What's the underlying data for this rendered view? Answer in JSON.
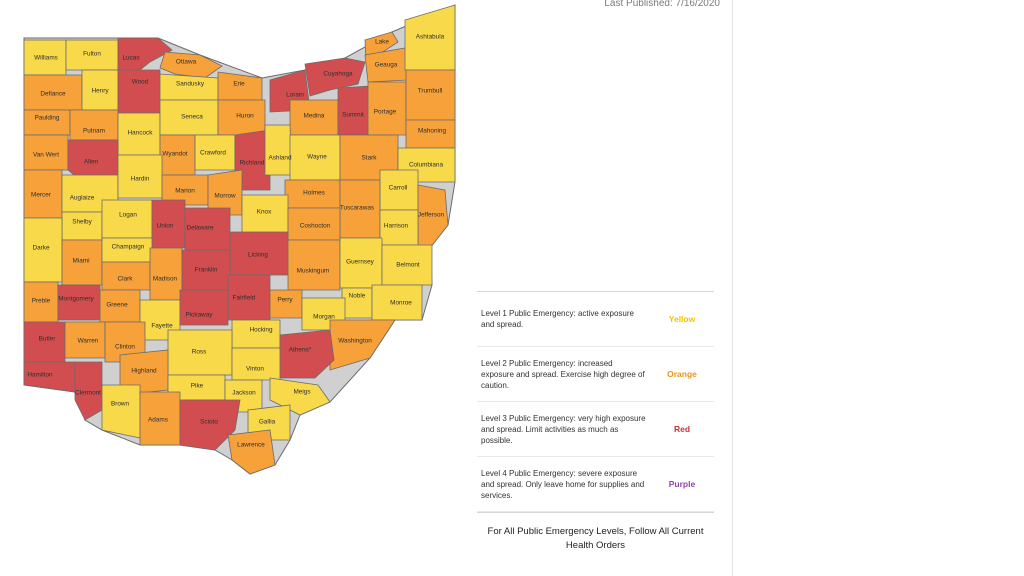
{
  "header": {
    "published": "Last Published: 7/16/2020"
  },
  "colors": {
    "yellow": "#f8d94a",
    "orange": "#f6a13a",
    "red": "#d24d4f",
    "purple": "#9b59b6"
  },
  "legend": {
    "levels": [
      {
        "description": "Level 1 Public Emergency: active exposure and spread.",
        "level": "Yellow",
        "color": "#f2c500"
      },
      {
        "description": "Level 2 Public Emergency: increased exposure and spread. Exercise high degree of caution.",
        "level": "Orange",
        "color": "#e8941a"
      },
      {
        "description": "Level 3 Public Emergency: very high exposure and spread. Limit activities as much as possible.",
        "level": "Red",
        "color": "#cc3333"
      },
      {
        "description": "Level 4 Public Emergency: severe exposure and spread. Only leave home for supplies and services.",
        "level": "Purple",
        "color": "#8e44ad"
      }
    ],
    "footer": "For All Public Emergency Levels, Follow All Current Health Orders"
  },
  "counties": [
    {
      "name": "Williams",
      "level": "Yellow"
    },
    {
      "name": "Fulton",
      "level": "Yellow"
    },
    {
      "name": "Lucas",
      "level": "Red"
    },
    {
      "name": "Ottawa",
      "level": "Orange"
    },
    {
      "name": "Defiance",
      "level": "Orange"
    },
    {
      "name": "Henry",
      "level": "Yellow"
    },
    {
      "name": "Wood",
      "level": "Red"
    },
    {
      "name": "Sandusky",
      "level": "Yellow"
    },
    {
      "name": "Erie",
      "level": "Orange"
    },
    {
      "name": "Lorain",
      "level": "Red"
    },
    {
      "name": "Cuyahoga",
      "level": "Red"
    },
    {
      "name": "Lake",
      "level": "Orange"
    },
    {
      "name": "Geauga",
      "level": "Orange"
    },
    {
      "name": "Ashtabula",
      "level": "Yellow"
    },
    {
      "name": "Paulding",
      "level": "Orange"
    },
    {
      "name": "Putnam",
      "level": "Orange"
    },
    {
      "name": "Hancock",
      "level": "Yellow"
    },
    {
      "name": "Seneca",
      "level": "Yellow"
    },
    {
      "name": "Huron",
      "level": "Orange"
    },
    {
      "name": "Medina",
      "level": "Orange"
    },
    {
      "name": "Summit",
      "level": "Red"
    },
    {
      "name": "Portage",
      "level": "Orange"
    },
    {
      "name": "Trumbull",
      "level": "Orange"
    },
    {
      "name": "Mahoning",
      "level": "Orange"
    },
    {
      "name": "Van Wert",
      "level": "Orange"
    },
    {
      "name": "Allen",
      "level": "Red"
    },
    {
      "name": "Wyandot",
      "level": "Orange"
    },
    {
      "name": "Crawford",
      "level": "Yellow"
    },
    {
      "name": "Richland",
      "level": "Red"
    },
    {
      "name": "Ashland",
      "level": "Yellow"
    },
    {
      "name": "Wayne",
      "level": "Yellow"
    },
    {
      "name": "Stark",
      "level": "Orange"
    },
    {
      "name": "Columbiana",
      "level": "Yellow"
    },
    {
      "name": "Mercer",
      "level": "Orange"
    },
    {
      "name": "Auglaize",
      "level": "Yellow"
    },
    {
      "name": "Hardin",
      "level": "Yellow"
    },
    {
      "name": "Marion",
      "level": "Orange"
    },
    {
      "name": "Morrow",
      "level": "Orange"
    },
    {
      "name": "Holmes",
      "level": "Orange"
    },
    {
      "name": "Carroll",
      "level": "Yellow"
    },
    {
      "name": "Tuscarawas",
      "level": "Orange"
    },
    {
      "name": "Jefferson",
      "level": "Orange"
    },
    {
      "name": "Shelby",
      "level": "Yellow"
    },
    {
      "name": "Logan",
      "level": "Yellow"
    },
    {
      "name": "Union",
      "level": "Red"
    },
    {
      "name": "Delaware",
      "level": "Red"
    },
    {
      "name": "Knox",
      "level": "Yellow"
    },
    {
      "name": "Coshocton",
      "level": "Orange"
    },
    {
      "name": "Harrison",
      "level": "Yellow"
    },
    {
      "name": "Darke",
      "level": "Yellow"
    },
    {
      "name": "Miami",
      "level": "Orange"
    },
    {
      "name": "Champaign",
      "level": "Yellow"
    },
    {
      "name": "Licking",
      "level": "Red"
    },
    {
      "name": "Muskingum",
      "level": "Orange"
    },
    {
      "name": "Guernsey",
      "level": "Yellow"
    },
    {
      "name": "Belmont",
      "level": "Yellow"
    },
    {
      "name": "Clark",
      "level": "Orange"
    },
    {
      "name": "Madison",
      "level": "Orange"
    },
    {
      "name": "Franklin",
      "level": "Red"
    },
    {
      "name": "Noble",
      "level": "Yellow"
    },
    {
      "name": "Monroe",
      "level": "Yellow"
    },
    {
      "name": "Preble",
      "level": "Orange"
    },
    {
      "name": "Montgomery",
      "level": "Red"
    },
    {
      "name": "Greene",
      "level": "Orange"
    },
    {
      "name": "Fairfield",
      "level": "Red"
    },
    {
      "name": "Perry",
      "level": "Orange"
    },
    {
      "name": "Fayette",
      "level": "Yellow"
    },
    {
      "name": "Pickaway",
      "level": "Red"
    },
    {
      "name": "Hocking",
      "level": "Yellow"
    },
    {
      "name": "Morgan",
      "level": "Yellow"
    },
    {
      "name": "Washington",
      "level": "Orange"
    },
    {
      "name": "Butler",
      "level": "Red"
    },
    {
      "name": "Warren",
      "level": "Orange"
    },
    {
      "name": "Clinton",
      "level": "Orange"
    },
    {
      "name": "Ross",
      "level": "Yellow"
    },
    {
      "name": "Athens*",
      "level": "Red"
    },
    {
      "name": "Vinton",
      "level": "Yellow"
    },
    {
      "name": "Hamilton",
      "level": "Red"
    },
    {
      "name": "Clermont",
      "level": "Red"
    },
    {
      "name": "Highland",
      "level": "Orange"
    },
    {
      "name": "Pike",
      "level": "Yellow"
    },
    {
      "name": "Jackson",
      "level": "Yellow"
    },
    {
      "name": "Meigs",
      "level": "Yellow"
    },
    {
      "name": "Brown",
      "level": "Yellow"
    },
    {
      "name": "Adams",
      "level": "Orange"
    },
    {
      "name": "Scioto",
      "level": "Red"
    },
    {
      "name": "Gallia",
      "level": "Yellow"
    },
    {
      "name": "Lawrence",
      "level": "Orange"
    }
  ]
}
